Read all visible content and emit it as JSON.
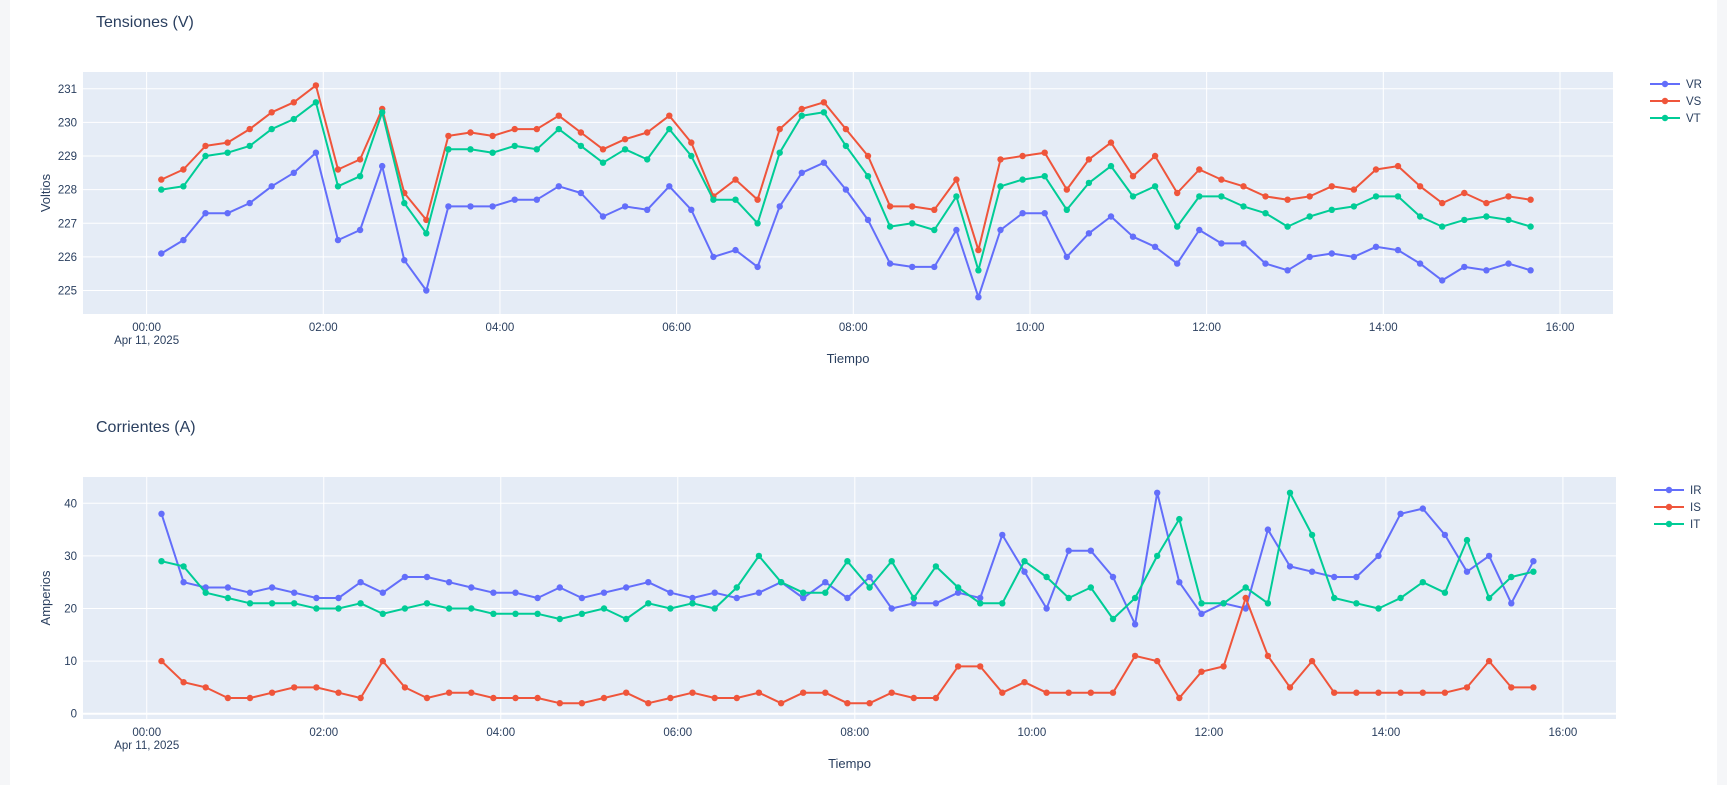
{
  "colors": {
    "plot_bg": "#e5ecf6",
    "grid": "#ffffff",
    "text": "#2a3f5f",
    "R": "#636efa",
    "S": "#ef553b",
    "T": "#00cc96"
  },
  "chart_data": [
    {
      "type": "line",
      "title": "Tensiones (V)",
      "xlabel": "Tiempo",
      "ylabel": "Voltios",
      "x_start": "2025-04-11 00:10",
      "x_step_minutes": 15,
      "x_ticks": [
        "00:00",
        "02:00",
        "04:00",
        "06:00",
        "08:00",
        "10:00",
        "12:00",
        "14:00",
        "16:00"
      ],
      "x_date_label": "Apr 11, 2025",
      "xlim_hours": [
        -0.72,
        16.6
      ],
      "y_ticks": [
        225,
        226,
        227,
        228,
        229,
        230,
        231
      ],
      "ylim": [
        224.3,
        231.5
      ],
      "grid": true,
      "legend": "top-right",
      "series": [
        {
          "name": "VR",
          "color": "#636efa",
          "values": [
            226.1,
            226.5,
            227.3,
            227.3,
            227.6,
            228.1,
            228.5,
            229.1,
            226.5,
            226.8,
            228.7,
            225.9,
            225.0,
            227.5,
            227.5,
            227.5,
            227.7,
            227.7,
            228.1,
            227.9,
            227.2,
            227.5,
            227.4,
            228.1,
            227.4,
            226.0,
            226.2,
            225.7,
            227.5,
            228.5,
            228.8,
            228.0,
            227.1,
            225.8,
            225.7,
            225.7,
            226.8,
            224.8,
            226.8,
            227.3,
            227.3,
            226.0,
            226.7,
            227.2,
            226.6,
            226.3,
            225.8,
            226.8,
            226.4,
            226.4,
            225.8,
            225.6,
            226.0,
            226.1,
            226.0,
            226.3,
            226.2,
            225.8,
            225.3,
            225.7,
            225.6,
            225.8,
            225.6
          ]
        },
        {
          "name": "VS",
          "color": "#ef553b",
          "values": [
            228.3,
            228.6,
            229.3,
            229.4,
            229.8,
            230.3,
            230.6,
            231.1,
            228.6,
            228.9,
            230.4,
            227.9,
            227.1,
            229.6,
            229.7,
            229.6,
            229.8,
            229.8,
            230.2,
            229.7,
            229.2,
            229.5,
            229.7,
            230.2,
            229.4,
            227.8,
            228.3,
            227.7,
            229.8,
            230.4,
            230.6,
            229.8,
            229.0,
            227.5,
            227.5,
            227.4,
            228.3,
            226.2,
            228.9,
            229.0,
            229.1,
            228.0,
            228.9,
            229.4,
            228.4,
            229.0,
            227.9,
            228.6,
            228.3,
            228.1,
            227.8,
            227.7,
            227.8,
            228.1,
            228.0,
            228.6,
            228.7,
            228.1,
            227.6,
            227.9,
            227.6,
            227.8,
            227.7
          ]
        },
        {
          "name": "VT",
          "color": "#00cc96",
          "values": [
            228.0,
            228.1,
            229.0,
            229.1,
            229.3,
            229.8,
            230.1,
            230.6,
            228.1,
            228.4,
            230.3,
            227.6,
            226.7,
            229.2,
            229.2,
            229.1,
            229.3,
            229.2,
            229.8,
            229.3,
            228.8,
            229.2,
            228.9,
            229.8,
            229.0,
            227.7,
            227.7,
            227.0,
            229.1,
            230.2,
            230.3,
            229.3,
            228.4,
            226.9,
            227.0,
            226.8,
            227.8,
            225.6,
            228.1,
            228.3,
            228.4,
            227.4,
            228.2,
            228.7,
            227.8,
            228.1,
            226.9,
            227.8,
            227.8,
            227.5,
            227.3,
            226.9,
            227.2,
            227.4,
            227.5,
            227.8,
            227.8,
            227.2,
            226.9,
            227.1,
            227.2,
            227.1,
            226.9
          ]
        }
      ]
    },
    {
      "type": "line",
      "title": "Corrientes (A)",
      "xlabel": "Tiempo",
      "ylabel": "Amperios",
      "x_start": "2025-04-11 00:10",
      "x_step_minutes": 15,
      "x_ticks": [
        "00:00",
        "02:00",
        "04:00",
        "06:00",
        "08:00",
        "10:00",
        "12:00",
        "14:00",
        "16:00"
      ],
      "x_date_label": "Apr 11, 2025",
      "xlim_hours": [
        -0.72,
        16.6
      ],
      "y_ticks": [
        0,
        10,
        20,
        30,
        40
      ],
      "ylim": [
        -1,
        45
      ],
      "grid": true,
      "legend": "top-right",
      "series": [
        {
          "name": "IR",
          "color": "#636efa",
          "values": [
            38,
            25,
            24,
            24,
            23,
            24,
            23,
            22,
            22,
            25,
            23,
            26,
            26,
            25,
            24,
            23,
            23,
            22,
            24,
            22,
            23,
            24,
            25,
            23,
            22,
            23,
            22,
            23,
            25,
            22,
            25,
            22,
            26,
            20,
            21,
            21,
            23,
            22,
            34,
            27,
            20,
            31,
            31,
            26,
            17,
            42,
            25,
            19,
            21,
            20,
            35,
            28,
            27,
            26,
            26,
            30,
            38,
            39,
            34,
            27,
            30,
            21,
            29
          ]
        },
        {
          "name": "IS",
          "color": "#ef553b",
          "values": [
            10,
            6,
            5,
            3,
            3,
            4,
            5,
            5,
            4,
            3,
            10,
            5,
            3,
            4,
            4,
            3,
            3,
            3,
            2,
            2,
            3,
            4,
            2,
            3,
            4,
            3,
            3,
            4,
            2,
            4,
            4,
            2,
            2,
            4,
            3,
            3,
            9,
            9,
            4,
            6,
            4,
            4,
            4,
            4,
            11,
            10,
            3,
            8,
            9,
            22,
            11,
            5,
            10,
            4,
            4,
            4,
            4,
            4,
            4,
            5,
            10,
            5,
            5
          ]
        },
        {
          "name": "IT",
          "color": "#00cc96",
          "values": [
            29,
            28,
            23,
            22,
            21,
            21,
            21,
            20,
            20,
            21,
            19,
            20,
            21,
            20,
            20,
            19,
            19,
            19,
            18,
            19,
            20,
            18,
            21,
            20,
            21,
            20,
            24,
            30,
            25,
            23,
            23,
            29,
            24,
            29,
            22,
            28,
            24,
            21,
            21,
            29,
            26,
            22,
            24,
            18,
            22,
            30,
            37,
            21,
            21,
            24,
            21,
            42,
            34,
            22,
            21,
            20,
            22,
            25,
            23,
            33,
            22,
            26,
            27
          ]
        }
      ]
    }
  ]
}
